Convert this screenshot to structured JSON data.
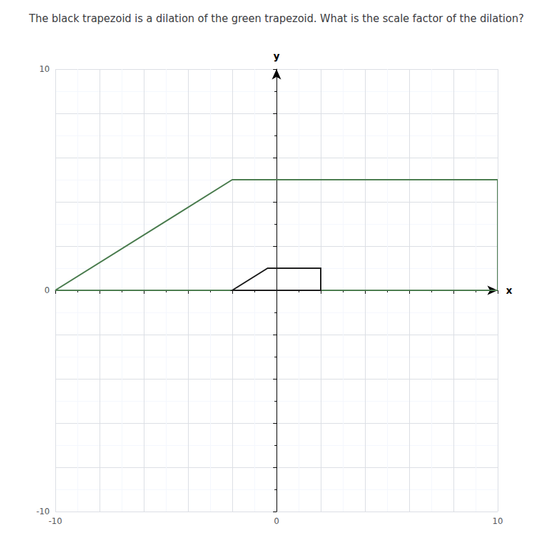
{
  "chart_data": {
    "type": "polygon",
    "title": "The black trapezoid is a dilation of the green trapezoid. What is the scale factor of the dilation?",
    "xlabel": "x",
    "ylabel": "y",
    "xlim": [
      -10,
      10
    ],
    "ylim": [
      -10,
      10
    ],
    "xticks": [
      -10,
      {
        "value": -8,
        "label": null
      },
      {
        "value": -6,
        "label": null
      },
      {
        "value": -4,
        "label": null
      },
      {
        "value": -2,
        "label": null
      },
      0,
      {
        "value": 2,
        "label": null
      },
      {
        "value": 4,
        "label": null
      },
      {
        "value": 6,
        "label": null
      },
      {
        "value": 8,
        "label": null
      },
      10
    ],
    "yticks": [
      -10,
      {
        "value": -8,
        "label": null
      },
      {
        "value": -6,
        "label": null
      },
      {
        "value": -4,
        "label": null
      },
      {
        "value": -2,
        "label": null
      },
      0,
      {
        "value": 2,
        "label": null
      },
      {
        "value": 4,
        "label": null
      },
      {
        "value": 6,
        "label": null
      },
      {
        "value": 8,
        "label": null
      },
      10
    ],
    "grid": true,
    "series": [
      {
        "color": "#4a7c4e",
        "values": [
          [
            -10,
            0
          ],
          [
            10,
            0
          ],
          [
            10,
            5
          ],
          [
            -2,
            5
          ]
        ]
      },
      {
        "color": "#1a1a1a",
        "values": [
          [
            -2,
            0
          ],
          [
            2,
            0
          ],
          [
            2,
            1
          ],
          [
            -0.4,
            1
          ]
        ]
      }
    ]
  }
}
